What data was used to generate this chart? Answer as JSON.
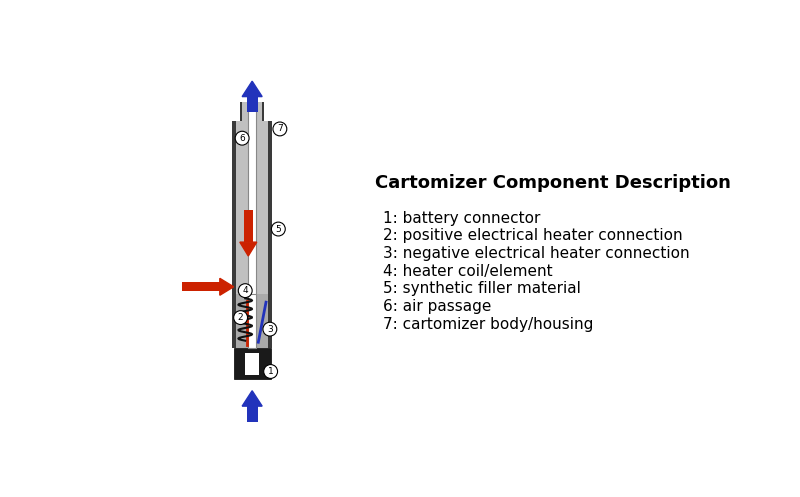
{
  "title": "Cartomizer Component Description",
  "bg_color": "#ffffff",
  "text_color": "#000000",
  "components": [
    "1: battery connector",
    "2: positive electrical heater connection",
    "3: negative electrical heater connection",
    "4: heater coil/element",
    "5: synthetic filler material",
    "6: air passage",
    "7: cartomizer body/housing"
  ],
  "dark_gray": "#3a3a3a",
  "medium_gray": "#888888",
  "light_gray": "#c0c0c0",
  "white_color": "#ffffff",
  "black_color": "#1a1a1a",
  "red_color": "#cc2200",
  "blue_color": "#2233bb"
}
